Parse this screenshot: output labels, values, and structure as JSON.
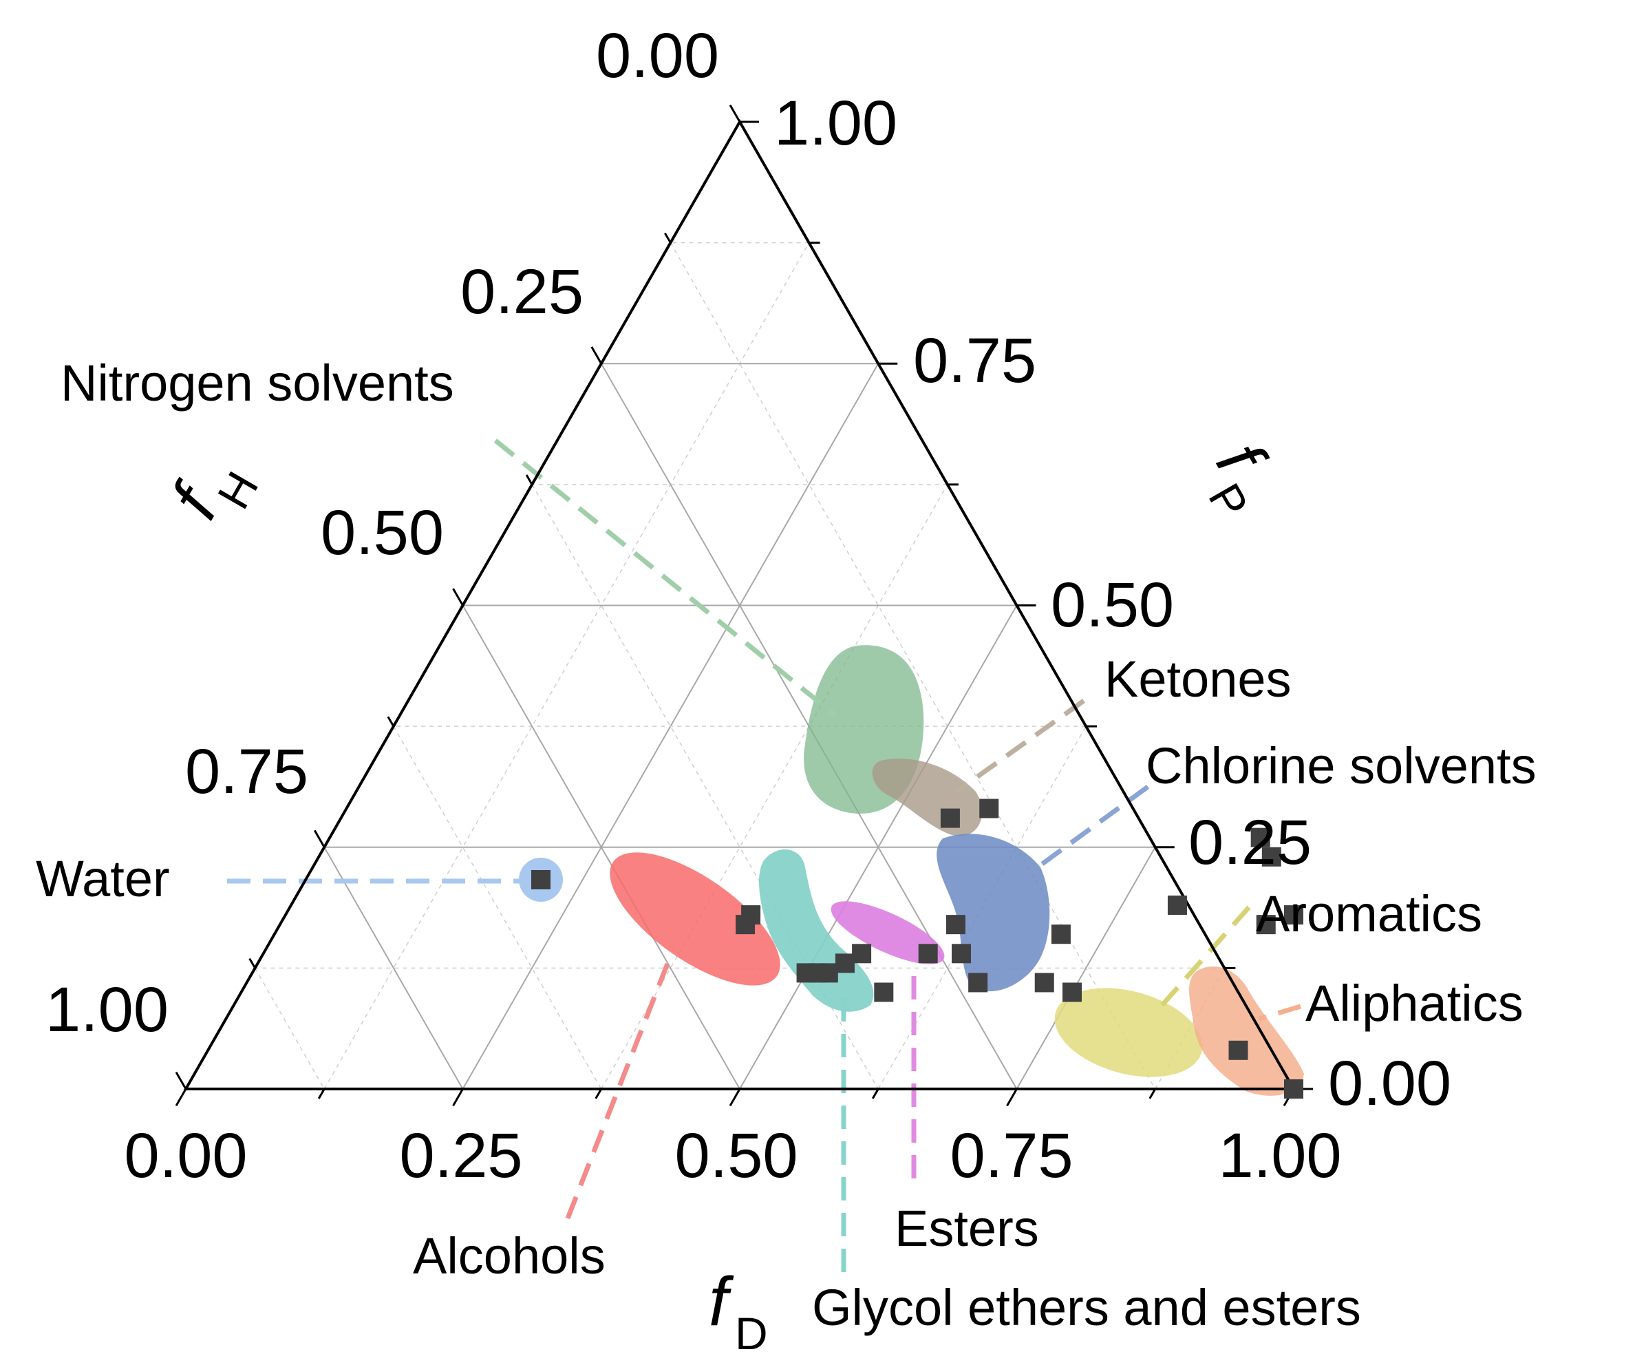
{
  "chart_data": {
    "type": "scatter",
    "plot_kind": "ternary",
    "axes": {
      "fD": {
        "label_main": "f",
        "label_sub": "D",
        "ticks": [
          "0.00",
          "0.25",
          "0.50",
          "0.75",
          "1.00"
        ]
      },
      "fP": {
        "label_main": "f",
        "label_sub": "P",
        "ticks": [
          "0.00",
          "0.25",
          "0.50",
          "0.75",
          "1.00"
        ]
      },
      "fH": {
        "label_main": "f",
        "label_sub": "H",
        "ticks": [
          "0.00",
          "0.25",
          "0.50",
          "0.75",
          "1.00"
        ]
      }
    },
    "grid": true,
    "points": [
      {
        "fD": 0.42,
        "fP": 0.18,
        "fH": 0.4
      },
      {
        "fD": 0.42,
        "fP": 0.17,
        "fH": 0.41
      },
      {
        "fD": 0.5,
        "fP": 0.12,
        "fH": 0.38
      },
      {
        "fD": 0.51,
        "fP": 0.12,
        "fH": 0.37
      },
      {
        "fD": 0.52,
        "fP": 0.12,
        "fH": 0.36
      },
      {
        "fD": 0.53,
        "fP": 0.13,
        "fH": 0.34
      },
      {
        "fD": 0.54,
        "fP": 0.14,
        "fH": 0.32
      },
      {
        "fD": 0.55,
        "fP": 0.28,
        "fH": 0.17
      },
      {
        "fD": 0.58,
        "fP": 0.29,
        "fH": 0.13
      },
      {
        "fD": 0.6,
        "fP": 0.14,
        "fH": 0.26
      },
      {
        "fD": 0.61,
        "fP": 0.17,
        "fH": 0.22
      },
      {
        "fD": 0.63,
        "fP": 0.14,
        "fH": 0.23
      },
      {
        "fD": 0.58,
        "fP": 0.1,
        "fH": 0.32
      },
      {
        "fD": 0.66,
        "fP": 0.11,
        "fH": 0.23
      },
      {
        "fD": 0.71,
        "fP": 0.16,
        "fH": 0.13
      },
      {
        "fD": 0.72,
        "fP": 0.11,
        "fH": 0.17
      },
      {
        "fD": 0.75,
        "fP": 0.1,
        "fH": 0.15
      },
      {
        "fD": 0.8,
        "fP": 0.19,
        "fH": 0.01
      },
      {
        "fD": 0.84,
        "fP": 0.26,
        "fH": -0.1
      },
      {
        "fD": 0.86,
        "fP": 0.24,
        "fH": -0.1
      },
      {
        "fD": 0.89,
        "fP": 0.17,
        "fH": -0.06
      },
      {
        "fD": 1.0,
        "fP": 0.0,
        "fH": 0.0
      },
      {
        "fD": 0.93,
        "fP": 0.04,
        "fH": 0.03
      },
      {
        "fD": 0.91,
        "fP": 0.18,
        "fH": -0.09
      }
    ],
    "groups": [
      {
        "name": "Nitrogen solvents",
        "color": "#7fb88c"
      },
      {
        "name": "Ketones",
        "color": "#a89a88"
      },
      {
        "name": "Chlorine solvents",
        "color": "#6c8ac4"
      },
      {
        "name": "Aromatics",
        "color": "#e2dc7e"
      },
      {
        "name": "Aliphatics",
        "color": "#f4b08e"
      },
      {
        "name": "Water",
        "color": "#a8c8f0"
      },
      {
        "name": "Alcohols",
        "color": "#f86b6b"
      },
      {
        "name": "Esters",
        "color": "#dd7ee0"
      },
      {
        "name": "Glycol ethers and esters",
        "color": "#7fcfc6"
      }
    ]
  }
}
